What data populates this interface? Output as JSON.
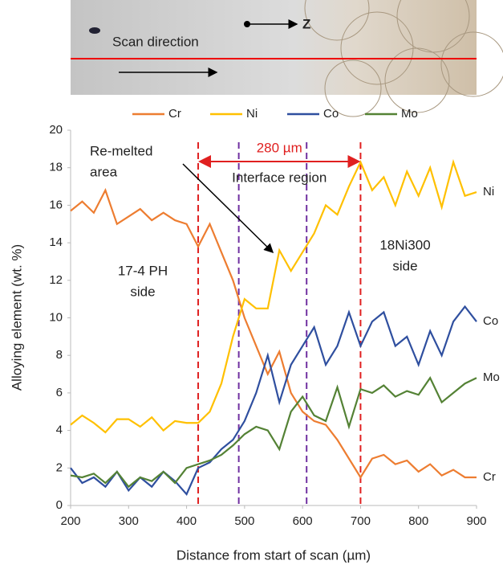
{
  "chart_data": {
    "type": "line",
    "image_labels": {
      "scan": "Scan direction",
      "axis": "Z"
    },
    "xlabel": "Distance from start of scan (µm)",
    "ylabel": "Alloying element (wt. %)",
    "x": [
      200,
      220,
      240,
      260,
      280,
      300,
      320,
      340,
      360,
      380,
      400,
      420,
      440,
      460,
      480,
      500,
      520,
      540,
      560,
      580,
      600,
      620,
      640,
      660,
      680,
      700,
      720,
      740,
      760,
      780,
      800,
      820,
      840,
      860,
      880,
      900
    ],
    "series": [
      {
        "name": "Cr",
        "color": "#ed7d31",
        "end_label": "Cr",
        "values": [
          15.7,
          16.2,
          15.6,
          16.8,
          15.0,
          15.4,
          15.8,
          15.2,
          15.6,
          15.2,
          15.0,
          13.8,
          15.0,
          13.5,
          12.0,
          10.0,
          8.5,
          7.0,
          8.2,
          6.0,
          5.0,
          4.5,
          4.3,
          3.5,
          2.5,
          1.5,
          2.5,
          2.7,
          2.2,
          2.4,
          1.8,
          2.2,
          1.6,
          1.9,
          1.5,
          1.5
        ]
      },
      {
        "name": "Ni",
        "color": "#ffc000",
        "end_label": "Ni",
        "values": [
          4.3,
          4.8,
          4.4,
          3.9,
          4.6,
          4.6,
          4.2,
          4.7,
          4.0,
          4.5,
          4.4,
          4.4,
          5.0,
          6.5,
          9.0,
          11.0,
          10.5,
          10.5,
          13.6,
          12.5,
          13.5,
          14.5,
          16.0,
          15.5,
          17.0,
          18.3,
          16.8,
          17.5,
          16.0,
          17.8,
          16.5,
          18.0,
          15.9,
          18.3,
          16.5,
          16.7
        ]
      },
      {
        "name": "Co",
        "color": "#2f4f9f",
        "end_label": "Co",
        "values": [
          2.0,
          1.2,
          1.5,
          1.0,
          1.8,
          0.8,
          1.5,
          1.0,
          1.8,
          1.3,
          0.6,
          2.0,
          2.3,
          3.0,
          3.5,
          4.5,
          6.0,
          8.0,
          5.5,
          7.5,
          8.5,
          9.5,
          7.5,
          8.5,
          10.3,
          8.5,
          9.8,
          10.3,
          8.5,
          9.0,
          7.5,
          9.3,
          8.0,
          9.8,
          10.6,
          9.8
        ]
      },
      {
        "name": "Mo",
        "color": "#548235",
        "end_label": "Mo",
        "values": [
          1.6,
          1.5,
          1.7,
          1.2,
          1.8,
          1.0,
          1.5,
          1.3,
          1.8,
          1.2,
          2.0,
          2.2,
          2.4,
          2.7,
          3.2,
          3.8,
          4.2,
          4.0,
          3.0,
          5.0,
          5.8,
          4.8,
          4.5,
          6.3,
          4.2,
          6.2,
          6.0,
          6.4,
          5.8,
          6.1,
          5.9,
          6.8,
          5.5,
          6.0,
          6.5,
          6.8
        ]
      }
    ],
    "vlines": [
      {
        "x": 420,
        "color": "#e02020"
      },
      {
        "x": 700,
        "color": "#e02020"
      },
      {
        "x": 490,
        "color": "#7030a0"
      },
      {
        "x": 607,
        "color": "#7030a0"
      }
    ],
    "annotations": {
      "width": "280 µm",
      "region": "Interface region",
      "remelted": [
        "Re-melted",
        "area"
      ],
      "left": [
        "17-4 PH",
        "side"
      ],
      "right": [
        "18Ni300",
        "side"
      ]
    },
    "xlim": [
      200,
      900
    ],
    "xticks": [
      200,
      300,
      400,
      500,
      600,
      700,
      800,
      900
    ],
    "ylim": [
      0,
      20
    ],
    "yticks": [
      0,
      2,
      4,
      6,
      8,
      10,
      12,
      14,
      16,
      18,
      20
    ],
    "legend": "top"
  }
}
